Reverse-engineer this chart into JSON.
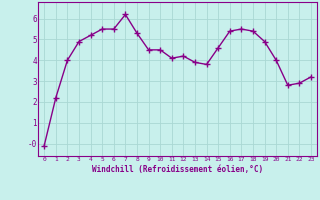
{
  "x": [
    0,
    1,
    2,
    3,
    4,
    5,
    6,
    7,
    8,
    9,
    10,
    11,
    12,
    13,
    14,
    15,
    16,
    17,
    18,
    19,
    20,
    21,
    22,
    23
  ],
  "y": [
    -0.1,
    2.2,
    4.0,
    4.9,
    5.2,
    5.5,
    5.5,
    6.2,
    5.3,
    4.5,
    4.5,
    4.1,
    4.2,
    3.9,
    3.8,
    4.6,
    5.4,
    5.5,
    5.4,
    4.9,
    4.0,
    2.8,
    2.9,
    3.2
  ],
  "line_color": "#880088",
  "marker": "+",
  "marker_size": 4,
  "marker_lw": 1.0,
  "bg_color": "#c8f0ec",
  "grid_color": "#aad8d4",
  "xlabel": "Windchill (Refroidissement éolien,°C)",
  "ylim": [
    -0.6,
    6.8
  ],
  "xlim": [
    -0.5,
    23.5
  ],
  "yticks": [
    0,
    1,
    2,
    3,
    4,
    5,
    6
  ],
  "ytick_labels": [
    "-0",
    "1",
    "2",
    "3",
    "4",
    "5",
    "6"
  ],
  "xticks": [
    0,
    1,
    2,
    3,
    4,
    5,
    6,
    7,
    8,
    9,
    10,
    11,
    12,
    13,
    14,
    15,
    16,
    17,
    18,
    19,
    20,
    21,
    22,
    23
  ],
  "xlabel_color": "#880088",
  "tick_color": "#880088",
  "spine_color": "#880088",
  "line_width": 1.0
}
